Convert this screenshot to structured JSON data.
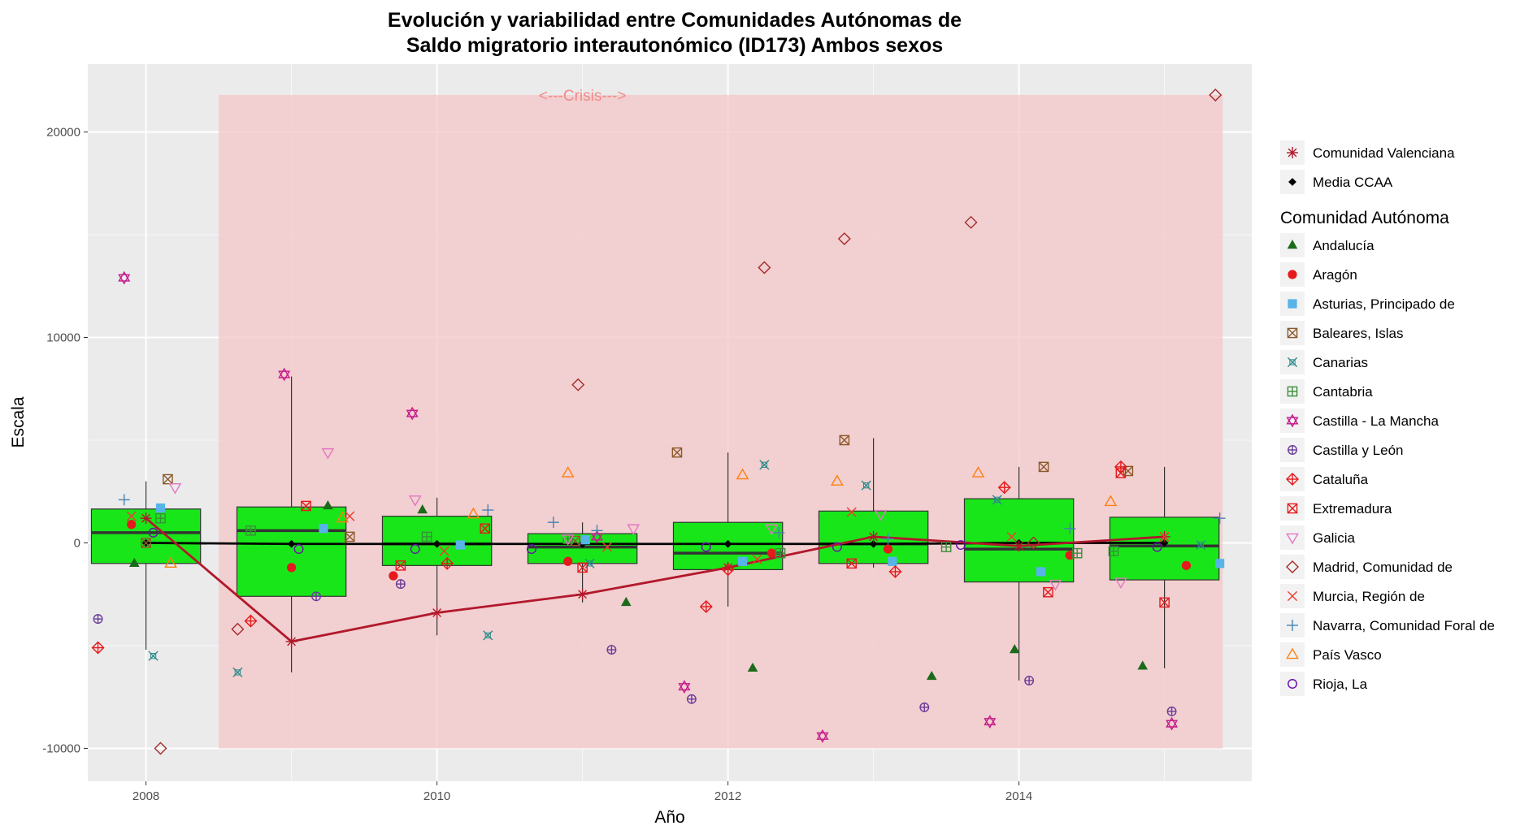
{
  "chart_data": {
    "type": "box",
    "title_lines": [
      "Evolución y variabilidad entre Comunidades Autónomas de",
      "Saldo migratorio interautonómico (ID173) Ambos sexos"
    ],
    "xlabel": "Año",
    "ylabel": "Escala",
    "xlim": [
      2007.6,
      2015.6
    ],
    "ylim": [
      -11600,
      23300
    ],
    "x_ticks": [
      2008,
      2010,
      2012,
      2014
    ],
    "x_minor_ticks": [
      2009,
      2011,
      2013,
      2015
    ],
    "y_ticks": [
      -10000,
      0,
      10000,
      20000
    ],
    "y_minor_ticks": [
      -5000,
      5000,
      15000
    ],
    "grid": true,
    "legend_position": "right",
    "annotation": {
      "text": "<---Crisis--->",
      "x": 2011,
      "y": 21800
    },
    "crisis_band": {
      "x_range": [
        2008.5,
        2015.4
      ],
      "y_range": [
        -10000,
        21800
      ],
      "color": "#f4c5c7"
    },
    "box_fill": "#19e619",
    "boxes": [
      {
        "x": 2008,
        "whisker_low": -5200,
        "q1": -1000,
        "median": 500,
        "q3": 1650,
        "whisker_high": 3000
      },
      {
        "x": 2009,
        "whisker_low": -6300,
        "q1": -2600,
        "median": 600,
        "q3": 1750,
        "whisker_high": 8100
      },
      {
        "x": 2010,
        "whisker_low": -4500,
        "q1": -1100,
        "median": -50,
        "q3": 1300,
        "whisker_high": 2200
      },
      {
        "x": 2011,
        "whisker_low": -2900,
        "q1": -1000,
        "median": -200,
        "q3": 450,
        "whisker_high": 1000
      },
      {
        "x": 2012,
        "whisker_low": -3100,
        "q1": -1300,
        "median": -500,
        "q3": 1000,
        "whisker_high": 4400
      },
      {
        "x": 2013,
        "whisker_low": -1200,
        "q1": -1000,
        "median": -50,
        "q3": 1550,
        "whisker_high": 5100
      },
      {
        "x": 2014,
        "whisker_low": -6700,
        "q1": -1900,
        "median": -300,
        "q3": 2150,
        "whisker_high": 3700
      },
      {
        "x": 2015,
        "whisker_low": -6100,
        "q1": -1800,
        "median": -150,
        "q3": 1250,
        "whisker_high": 3700
      }
    ],
    "lines": [
      {
        "name": "Comunidad Valenciana",
        "color": "#b2182b",
        "shape": "asterisk",
        "x": [
          2008,
          2009,
          2010,
          2011,
          2012,
          2013,
          2014,
          2015
        ],
        "y": [
          1200,
          -4800,
          -3400,
          -2500,
          -1200,
          300,
          -150,
          300
        ]
      },
      {
        "name": "Media CCAA",
        "color": "#000000",
        "shape": "diamond-filled",
        "x": [
          2008,
          2009,
          2010,
          2011,
          2012,
          2013,
          2014,
          2015
        ],
        "y": [
          0,
          -50,
          -50,
          -50,
          -50,
          -50,
          0,
          0
        ]
      }
    ],
    "legend_title": "Comunidad Autónoma",
    "series": [
      {
        "name": "Andalucía",
        "color": "#1a6b1a",
        "shape": "triangle-filled",
        "x": [
          2007.92,
          2009.25,
          2009.9,
          2011.3,
          2012.17,
          2013.4,
          2013.97,
          2014.85
        ],
        "y": [
          -1000,
          1800,
          1600,
          -2900,
          -6100,
          -6500,
          -5200,
          -6000
        ]
      },
      {
        "name": "Aragón",
        "color": "#e41a1c",
        "shape": "circle-filled",
        "x": [
          2007.9,
          2009.7,
          2010.9,
          2012.3,
          2013.1,
          2014.35,
          2015.15,
          2009.0
        ],
        "y": [
          900,
          -1600,
          -900,
          -500,
          -300,
          -600,
          -1100,
          -1200
        ]
      },
      {
        "name": "Asturias, Principado de",
        "color": "#56b4e9",
        "shape": "square-filled",
        "x": [
          2008.1,
          2009.22,
          2010.16,
          2011.02,
          2012.1,
          2013.13,
          2014.15,
          2015.38
        ],
        "y": [
          1700,
          700,
          -100,
          150,
          -900,
          -900,
          -1400,
          -1000
        ]
      },
      {
        "name": "Baleares, Islas",
        "color": "#8b5a2b",
        "shape": "square-x",
        "x": [
          2008.15,
          2009.4,
          2010.95,
          2011.65,
          2012.8,
          2014.17,
          2014.75,
          2008.0
        ],
        "y": [
          3100,
          300,
          100,
          4400,
          5000,
          3700,
          3500,
          0
        ]
      },
      {
        "name": "Canarias",
        "color": "#2e8b8b",
        "shape": "x-box",
        "x": [
          2008.05,
          2008.63,
          2010.35,
          2011.05,
          2012.25,
          2012.95,
          2013.85,
          2015.25
        ],
        "y": [
          -5500,
          -6300,
          -4500,
          -1000,
          3800,
          2800,
          2100,
          -100
        ]
      },
      {
        "name": "Cantabria",
        "color": "#3a8f3a",
        "shape": "square-plus",
        "x": [
          2008.1,
          2008.72,
          2009.93,
          2010.9,
          2012.36,
          2013.5,
          2014.4,
          2014.65
        ],
        "y": [
          1200,
          600,
          300,
          200,
          -500,
          -200,
          -500,
          -400
        ]
      },
      {
        "name": "Castilla - La Mancha",
        "color": "#c51b8a",
        "shape": "star-of-david",
        "x": [
          2007.85,
          2008.95,
          2009.83,
          2011.1,
          2011.7,
          2012.65,
          2013.8,
          2015.05
        ],
        "y": [
          12900,
          8200,
          6300,
          300,
          -7000,
          -9400,
          -8700,
          -8800
        ]
      },
      {
        "name": "Castilla y León",
        "color": "#6a3d9a",
        "shape": "circle-plus",
        "x": [
          2007.67,
          2009.17,
          2009.75,
          2011.2,
          2011.75,
          2013.35,
          2014.07,
          2015.05
        ],
        "y": [
          -3700,
          -2600,
          -2000,
          -5200,
          -7600,
          -8000,
          -6700,
          -8200
        ]
      },
      {
        "name": "Cataluña",
        "color": "#e41a1c",
        "shape": "diamond-plus",
        "x": [
          2007.67,
          2008.72,
          2010.07,
          2011.85,
          2012.0,
          2013.15,
          2013.9,
          2014.7
        ],
        "y": [
          -5100,
          -3800,
          -1000,
          -3100,
          -1300,
          -1400,
          2700,
          3700
        ]
      },
      {
        "name": "Extremadura",
        "color": "#e41a1c",
        "shape": "square-x",
        "x": [
          2009.1,
          2009.75,
          2010.33,
          2011.0,
          2012.85,
          2014.2,
          2014.7,
          2015.0
        ],
        "y": [
          1800,
          -1100,
          700,
          -1200,
          -1000,
          -2400,
          3400,
          -2900
        ]
      },
      {
        "name": "Galicia",
        "color": "#e377c2",
        "shape": "triangle-down",
        "x": [
          2008.2,
          2009.25,
          2009.85,
          2010.9,
          2011.35,
          2012.3,
          2013.05,
          2014.25,
          2014.7
        ],
        "y": [
          2700,
          4400,
          2100,
          200,
          700,
          700,
          1400,
          -2000,
          -1900
        ]
      },
      {
        "name": "Madrid, Comunidad de",
        "color": "#a52a2a",
        "shape": "diamond-open",
        "x": [
          2008.1,
          2008.63,
          2010.97,
          2012.25,
          2012.8,
          2013.67,
          2014.1,
          2015.35
        ],
        "y": [
          -10000,
          -4200,
          7700,
          13400,
          14800,
          15600,
          0,
          21800
        ]
      },
      {
        "name": "Murcia, Región de",
        "color": "#ef3b2c",
        "shape": "x",
        "x": [
          2007.9,
          2009.4,
          2010.05,
          2011.17,
          2012.2,
          2012.85,
          2013.95,
          2015.0
        ],
        "y": [
          1300,
          1300,
          -400,
          -200,
          -800,
          1500,
          300,
          300
        ]
      },
      {
        "name": "Navarra, Comunidad Foral de",
        "color": "#4682b4",
        "shape": "plus",
        "x": [
          2007.85,
          2010.35,
          2010.8,
          2012.35,
          2014.35,
          2015.38,
          2013.1,
          2011.1
        ],
        "y": [
          2100,
          1600,
          1000,
          500,
          700,
          1200,
          200,
          600
        ]
      },
      {
        "name": "País Vasco",
        "color": "#ff7f0e",
        "shape": "triangle-open",
        "x": [
          2008.17,
          2010.25,
          2010.9,
          2012.1,
          2012.75,
          2013.72,
          2014.63,
          2009.35
        ],
        "y": [
          -1000,
          1400,
          3400,
          3300,
          3000,
          3400,
          2000,
          1200
        ]
      },
      {
        "name": "Rioja, La",
        "color": "#6a0dad",
        "shape": "circle-open",
        "x": [
          2008.05,
          2009.05,
          2009.85,
          2010.65,
          2011.85,
          2012.75,
          2013.6,
          2014.95
        ],
        "y": [
          500,
          -300,
          -300,
          -300,
          -200,
          -200,
          -100,
          -200
        ]
      }
    ]
  }
}
